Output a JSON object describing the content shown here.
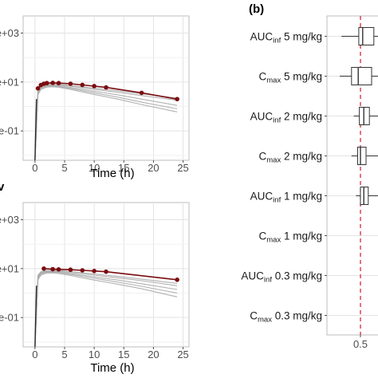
{
  "colors": {
    "observed": "#7a0d10",
    "simulated": "#a9a9a9",
    "reference_line": "#d7263d",
    "grid": "#e3e3e3"
  },
  "chart_data": [
    {
      "type": "line",
      "y_scale": "log",
      "y_tick_labels": [
        "e+03",
        "e+01",
        "e-01"
      ],
      "y_tick_values": [
        1000,
        10,
        0.1
      ],
      "x": [
        0,
        5,
        10,
        15,
        20,
        25
      ],
      "x_tick_labels": [
        "0",
        "5",
        "10",
        "15",
        "20",
        "25"
      ],
      "xlabel": "Time (h)",
      "xlim": [
        -2,
        26
      ],
      "grid": true,
      "observed": {
        "x": [
          0.5,
          1,
          1.5,
          2,
          3,
          4,
          6,
          8,
          10,
          12,
          18,
          24
        ],
        "y": [
          5.5,
          7.5,
          8.5,
          9.0,
          9.2,
          9.0,
          8.5,
          7.6,
          6.8,
          6.0,
          3.6,
          2.0
        ]
      },
      "simulated_profiles": [
        {
          "x": [
            0,
            0.5,
            1,
            2,
            3,
            4,
            6,
            10,
            14,
            18,
            24
          ],
          "y": [
            0.001,
            4.5,
            6.5,
            7.5,
            7.8,
            7.6,
            6.8,
            5.0,
            3.8,
            2.8,
            1.8
          ]
        },
        {
          "x": [
            0,
            0.5,
            1,
            2,
            3,
            4,
            6,
            10,
            14,
            18,
            24
          ],
          "y": [
            0.001,
            4.0,
            6.0,
            7.0,
            7.2,
            7.0,
            6.0,
            4.2,
            3.0,
            2.0,
            1.1
          ]
        },
        {
          "x": [
            0,
            0.5,
            1,
            2,
            3,
            4,
            6,
            10,
            14,
            18,
            24
          ],
          "y": [
            0.001,
            3.5,
            5.5,
            6.6,
            6.8,
            6.5,
            5.5,
            3.6,
            2.4,
            1.5,
            0.8
          ]
        },
        {
          "x": [
            0,
            0.5,
            1,
            2,
            3,
            4,
            6,
            10,
            14,
            18,
            24
          ],
          "y": [
            0.001,
            3.0,
            5.0,
            6.2,
            6.4,
            6.1,
            5.0,
            3.1,
            2.0,
            1.2,
            0.6
          ]
        },
        {
          "x": [
            0,
            0.5,
            1,
            2,
            3,
            4,
            6,
            10,
            14,
            18,
            24
          ],
          "y": [
            0.001,
            5.0,
            7.0,
            8.0,
            8.2,
            8.0,
            7.2,
            5.6,
            4.4,
            3.3,
            2.2
          ]
        }
      ]
    },
    {
      "type": "line",
      "y_scale": "log",
      "y_tick_labels": [
        "e+03",
        "e+01",
        "e-01"
      ],
      "y_tick_values": [
        1000,
        10,
        0.1
      ],
      "x": [
        0,
        5,
        10,
        15,
        20,
        25
      ],
      "x_tick_labels": [
        "0",
        "5",
        "10",
        "15",
        "20",
        "25"
      ],
      "xlabel": "Time (h)",
      "xlim": [
        -2,
        26
      ],
      "grid": true,
      "observed": {
        "x": [
          1.5,
          3,
          4,
          6,
          8,
          10,
          12,
          24
        ],
        "y": [
          10.0,
          9.5,
          9.3,
          9.0,
          8.5,
          8.0,
          7.5,
          3.5
        ]
      },
      "simulated_profiles": [
        {
          "x": [
            0,
            0.5,
            1,
            2,
            3,
            4,
            6,
            10,
            14,
            18,
            24
          ],
          "y": [
            0.001,
            5.0,
            7.0,
            8.0,
            8.0,
            7.8,
            7.0,
            5.4,
            4.2,
            3.2,
            2.0
          ]
        },
        {
          "x": [
            0,
            0.5,
            1,
            2,
            3,
            4,
            6,
            10,
            14,
            18,
            24
          ],
          "y": [
            0.001,
            4.5,
            6.5,
            7.6,
            7.6,
            7.3,
            6.3,
            4.6,
            3.4,
            2.4,
            1.4
          ]
        },
        {
          "x": [
            0,
            0.5,
            1,
            2,
            3,
            4,
            6,
            10,
            14,
            18,
            24
          ],
          "y": [
            0.001,
            4.0,
            6.0,
            7.1,
            7.1,
            6.8,
            5.8,
            4.0,
            2.8,
            1.9,
            1.0
          ]
        },
        {
          "x": [
            0,
            0.5,
            1,
            2,
            3,
            4,
            6,
            10,
            14,
            18,
            24
          ],
          "y": [
            0.001,
            3.5,
            5.4,
            6.6,
            6.7,
            6.3,
            5.2,
            3.4,
            2.3,
            1.5,
            0.7
          ]
        },
        {
          "x": [
            0,
            0.5,
            1,
            2,
            3,
            4,
            6,
            10,
            14,
            18,
            24
          ],
          "y": [
            0.001,
            5.4,
            7.5,
            8.5,
            8.6,
            8.4,
            7.6,
            6.0,
            4.8,
            3.7,
            2.5
          ]
        }
      ]
    },
    {
      "type": "box",
      "panel_label": "(b)",
      "orientation": "horizontal",
      "reference_line": 0.5,
      "x_tick_labels": [
        "0.5"
      ],
      "xlim": [
        0.2,
        0.7
      ],
      "rows": [
        {
          "label_main": "AUC",
          "label_sub": "inf",
          "label_rest": " 5 mg/kg",
          "whisker_low": 0.33,
          "q1": 0.485,
          "median": 0.52,
          "q3": 0.62,
          "whisker_high": 0.7
        },
        {
          "label_main": "C",
          "label_sub": "max",
          "label_rest": " 5 mg/kg",
          "whisker_low": 0.315,
          "q1": 0.42,
          "median": 0.48,
          "q3": 0.6,
          "whisker_high": 0.7
        },
        {
          "label_main": "AUC",
          "label_sub": "inf",
          "label_rest": " 2 mg/kg",
          "whisker_low": 0.44,
          "q1": 0.49,
          "median": 0.53,
          "q3": 0.58,
          "whisker_high": 0.7
        },
        {
          "label_main": "C",
          "label_sub": "max",
          "label_rest": " 2 mg/kg",
          "whisker_low": 0.42,
          "q1": 0.475,
          "median": 0.5,
          "q3": 0.55,
          "whisker_high": 0.7
        },
        {
          "label_main": "AUC",
          "label_sub": "inf",
          "label_rest": " 1 mg/kg",
          "whisker_low": 0.46,
          "q1": 0.5,
          "median": 0.53,
          "q3": 0.57,
          "whisker_high": 0.7
        },
        {
          "label_main": "C",
          "label_sub": "max",
          "label_rest": " 1 mg/kg"
        },
        {
          "label_main": "AUC",
          "label_sub": "inf",
          "label_rest": " 0.3 mg/kg"
        },
        {
          "label_main": "C",
          "label_sub": "max",
          "label_rest": " 0.3 mg/kg"
        }
      ]
    }
  ]
}
